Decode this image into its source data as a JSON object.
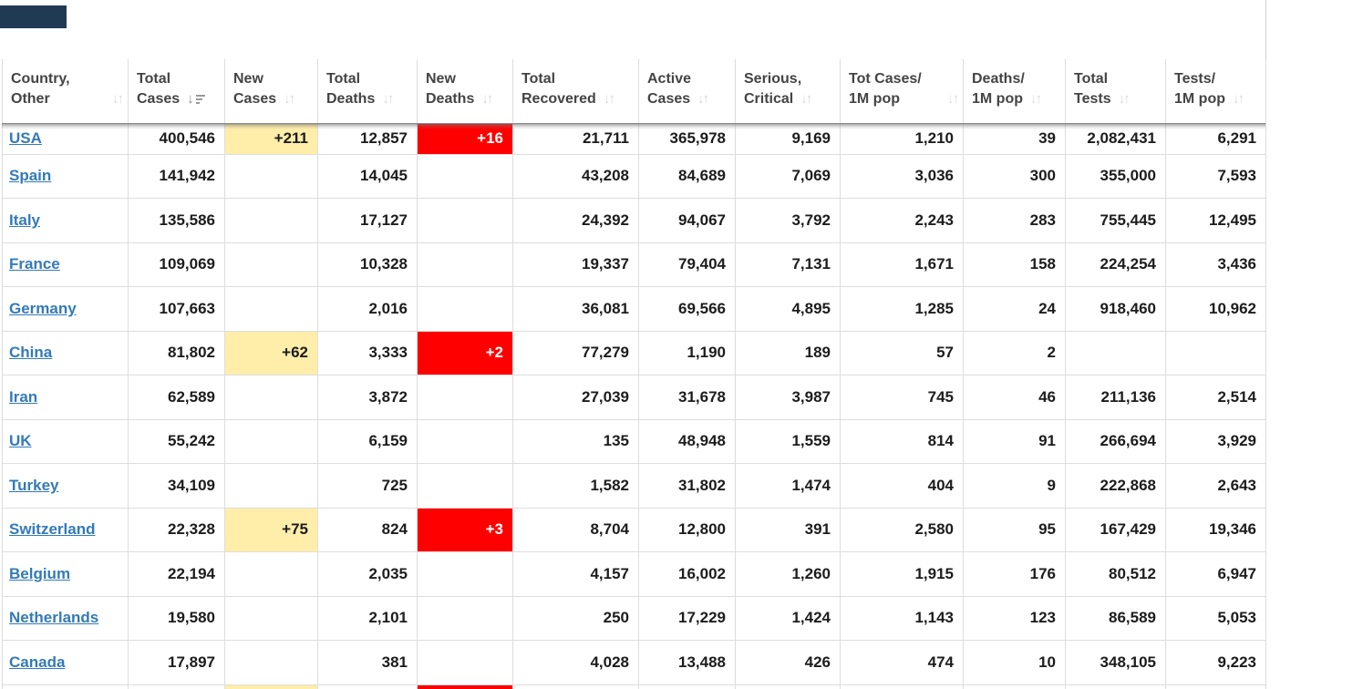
{
  "table": {
    "columns": [
      {
        "id": "country",
        "line1": "Country,",
        "line2": "Other",
        "sort": "inactive",
        "icon_at_end": true
      },
      {
        "id": "total_cases",
        "line1": "Total",
        "line2": "Cases",
        "sort": "desc",
        "icon_at_end": false
      },
      {
        "id": "new_cases",
        "line1": "New",
        "line2": "Cases",
        "sort": "inactive",
        "icon_at_end": false
      },
      {
        "id": "total_deaths",
        "line1": "Total",
        "line2": "Deaths",
        "sort": "inactive",
        "icon_at_end": false
      },
      {
        "id": "new_deaths",
        "line1": "New",
        "line2": "Deaths",
        "sort": "inactive",
        "icon_at_end": false
      },
      {
        "id": "total_recovered",
        "line1": "Total",
        "line2": "Recovered",
        "sort": "inactive",
        "icon_at_end": false
      },
      {
        "id": "active_cases",
        "line1": "Active",
        "line2": "Cases",
        "sort": "inactive",
        "icon_at_end": false
      },
      {
        "id": "serious_critical",
        "line1": "Serious,",
        "line2": "Critical",
        "sort": "inactive",
        "icon_at_end": false
      },
      {
        "id": "tot_cases_1m",
        "line1": "Tot Cases/",
        "line2": "1M pop",
        "sort": "inactive",
        "icon_at_end": true
      },
      {
        "id": "deaths_1m",
        "line1": "Deaths/",
        "line2": "1M pop",
        "sort": "inactive",
        "icon_at_end": false
      },
      {
        "id": "total_tests",
        "line1": "Total",
        "line2": "Tests",
        "sort": "inactive",
        "icon_at_end": false
      },
      {
        "id": "tests_1m",
        "line1": "Tests/",
        "line2": "1M pop",
        "sort": "inactive",
        "icon_at_end": false
      }
    ],
    "rows": [
      {
        "country": "USA",
        "total_cases": "400,546",
        "new_cases": "+211",
        "total_deaths": "12,857",
        "new_deaths": "+16",
        "total_recovered": "21,711",
        "active_cases": "365,978",
        "serious_critical": "9,169",
        "tot_cases_1m": "1,210",
        "deaths_1m": "39",
        "total_tests": "2,082,431",
        "tests_1m": "6,291"
      },
      {
        "country": "Spain",
        "total_cases": "141,942",
        "new_cases": "",
        "total_deaths": "14,045",
        "new_deaths": "",
        "total_recovered": "43,208",
        "active_cases": "84,689",
        "serious_critical": "7,069",
        "tot_cases_1m": "3,036",
        "deaths_1m": "300",
        "total_tests": "355,000",
        "tests_1m": "7,593"
      },
      {
        "country": "Italy",
        "total_cases": "135,586",
        "new_cases": "",
        "total_deaths": "17,127",
        "new_deaths": "",
        "total_recovered": "24,392",
        "active_cases": "94,067",
        "serious_critical": "3,792",
        "tot_cases_1m": "2,243",
        "deaths_1m": "283",
        "total_tests": "755,445",
        "tests_1m": "12,495"
      },
      {
        "country": "France",
        "total_cases": "109,069",
        "new_cases": "",
        "total_deaths": "10,328",
        "new_deaths": "",
        "total_recovered": "19,337",
        "active_cases": "79,404",
        "serious_critical": "7,131",
        "tot_cases_1m": "1,671",
        "deaths_1m": "158",
        "total_tests": "224,254",
        "tests_1m": "3,436"
      },
      {
        "country": "Germany",
        "total_cases": "107,663",
        "new_cases": "",
        "total_deaths": "2,016",
        "new_deaths": "",
        "total_recovered": "36,081",
        "active_cases": "69,566",
        "serious_critical": "4,895",
        "tot_cases_1m": "1,285",
        "deaths_1m": "24",
        "total_tests": "918,460",
        "tests_1m": "10,962"
      },
      {
        "country": "China",
        "total_cases": "81,802",
        "new_cases": "+62",
        "total_deaths": "3,333",
        "new_deaths": "+2",
        "total_recovered": "77,279",
        "active_cases": "1,190",
        "serious_critical": "189",
        "tot_cases_1m": "57",
        "deaths_1m": "2",
        "total_tests": "",
        "tests_1m": ""
      },
      {
        "country": "Iran",
        "total_cases": "62,589",
        "new_cases": "",
        "total_deaths": "3,872",
        "new_deaths": "",
        "total_recovered": "27,039",
        "active_cases": "31,678",
        "serious_critical": "3,987",
        "tot_cases_1m": "745",
        "deaths_1m": "46",
        "total_tests": "211,136",
        "tests_1m": "2,514"
      },
      {
        "country": "UK",
        "total_cases": "55,242",
        "new_cases": "",
        "total_deaths": "6,159",
        "new_deaths": "",
        "total_recovered": "135",
        "active_cases": "48,948",
        "serious_critical": "1,559",
        "tot_cases_1m": "814",
        "deaths_1m": "91",
        "total_tests": "266,694",
        "tests_1m": "3,929"
      },
      {
        "country": "Turkey",
        "total_cases": "34,109",
        "new_cases": "",
        "total_deaths": "725",
        "new_deaths": "",
        "total_recovered": "1,582",
        "active_cases": "31,802",
        "serious_critical": "1,474",
        "tot_cases_1m": "404",
        "deaths_1m": "9",
        "total_tests": "222,868",
        "tests_1m": "2,643"
      },
      {
        "country": "Switzerland",
        "total_cases": "22,328",
        "new_cases": "+75",
        "total_deaths": "824",
        "new_deaths": "+3",
        "total_recovered": "8,704",
        "active_cases": "12,800",
        "serious_critical": "391",
        "tot_cases_1m": "2,580",
        "deaths_1m": "95",
        "total_tests": "167,429",
        "tests_1m": "19,346"
      },
      {
        "country": "Belgium",
        "total_cases": "22,194",
        "new_cases": "",
        "total_deaths": "2,035",
        "new_deaths": "",
        "total_recovered": "4,157",
        "active_cases": "16,002",
        "serious_critical": "1,260",
        "tot_cases_1m": "1,915",
        "deaths_1m": "176",
        "total_tests": "80,512",
        "tests_1m": "6,947"
      },
      {
        "country": "Netherlands",
        "total_cases": "19,580",
        "new_cases": "",
        "total_deaths": "2,101",
        "new_deaths": "",
        "total_recovered": "250",
        "active_cases": "17,229",
        "serious_critical": "1,424",
        "tot_cases_1m": "1,143",
        "deaths_1m": "123",
        "total_tests": "86,589",
        "tests_1m": "5,053"
      },
      {
        "country": "Canada",
        "total_cases": "17,897",
        "new_cases": "",
        "total_deaths": "381",
        "new_deaths": "",
        "total_recovered": "4,028",
        "active_cases": "13,488",
        "serious_critical": "426",
        "tot_cases_1m": "474",
        "deaths_1m": "10",
        "total_tests": "348,105",
        "tests_1m": "9,223"
      }
    ],
    "partial_next_row": {
      "new_cases_highlight": "yellow",
      "new_deaths_highlight": "red"
    }
  },
  "icons": {
    "sort_inactive_glyph": "↓↑",
    "sort_desc_arrow": "↓"
  },
  "colors": {
    "highlight_yellow": "#FFEEAA",
    "highlight_red": "#FF0000",
    "link_blue": "#337AB7"
  }
}
